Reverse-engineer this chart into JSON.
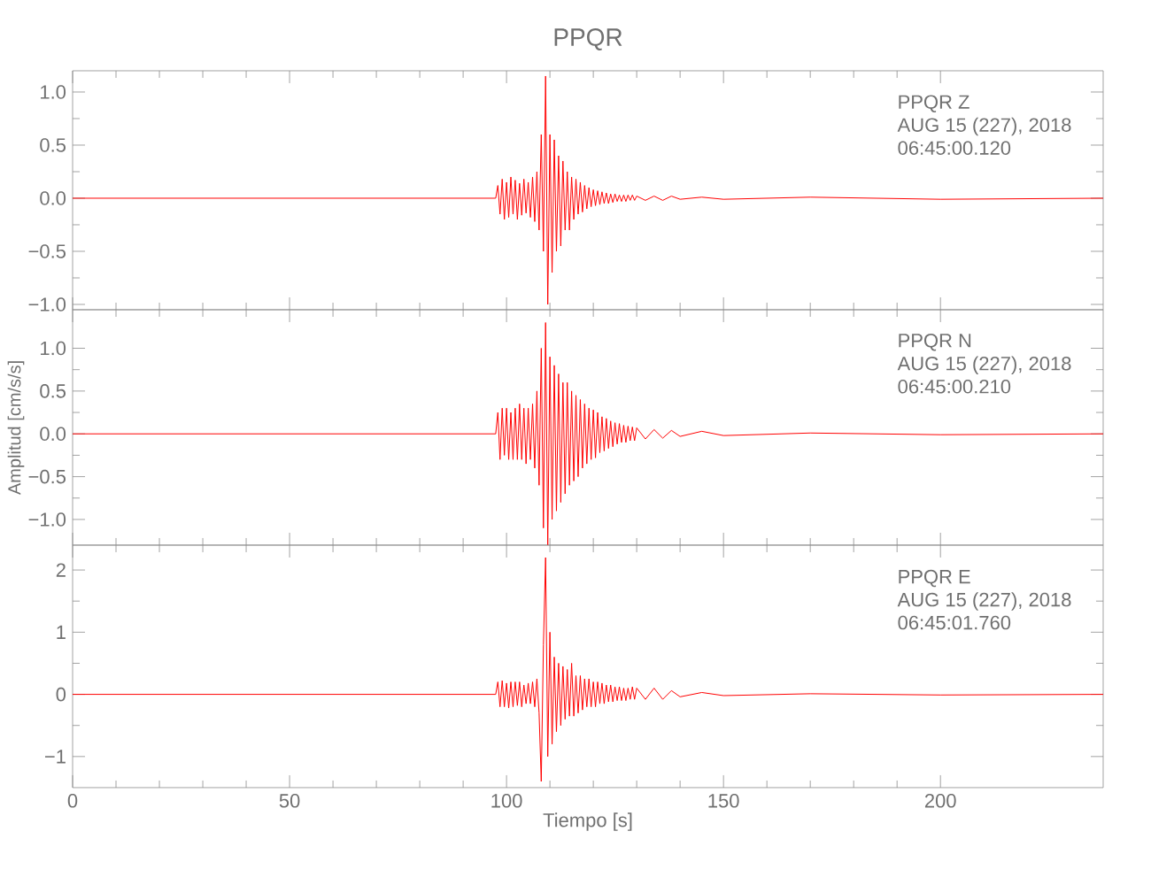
{
  "chart_data": [
    {
      "type": "line",
      "title": "PPQR",
      "color": "#ff0000",
      "marker": "none",
      "tick_labels": "y",
      "xlim": [
        0,
        237.5
      ],
      "ylim": [
        -1.05,
        1.2
      ],
      "xticks": [
        0,
        50,
        100,
        150,
        200
      ],
      "yticks": [
        {
          "value": -1,
          "label": "−1.0"
        },
        {
          "value": -0.5,
          "label": "−0.5"
        },
        {
          "value": 0,
          "label": "0.0"
        },
        {
          "value": 0.5,
          "label": "0.5"
        },
        {
          "value": 1,
          "label": "1.0"
        }
      ],
      "annotations": [
        "PPQR   Z",
        "AUG 15 (227), 2018",
        "06:45:00.120"
      ],
      "x": [
        0,
        25,
        50,
        75,
        97.5,
        98,
        98.5,
        99,
        99.5,
        100,
        100.5,
        101,
        101.5,
        102,
        102.5,
        103,
        103.5,
        104,
        104.5,
        105,
        105.5,
        106,
        106.5,
        107,
        107.5,
        108,
        108.5,
        109,
        109.5,
        110,
        110.5,
        111,
        111.5,
        112,
        112.5,
        113,
        113.5,
        114,
        114.5,
        115,
        115.5,
        116,
        116.5,
        117,
        117.5,
        118,
        118.5,
        119,
        119.5,
        120,
        120.5,
        121,
        121.5,
        122,
        122.5,
        123,
        123.5,
        124,
        124.5,
        125,
        125.5,
        126,
        126.5,
        127,
        127.5,
        128,
        128.5,
        129,
        129.5,
        130,
        132,
        134,
        136,
        138,
        140,
        145,
        150,
        170,
        200,
        237.5
      ],
      "values": [
        0,
        0,
        0,
        0,
        0,
        0.12,
        -0.15,
        0.18,
        -0.2,
        0.15,
        -0.18,
        0.2,
        -0.15,
        0.17,
        -0.2,
        0.14,
        -0.16,
        0.18,
        -0.14,
        0.15,
        -0.18,
        0.2,
        -0.22,
        0.25,
        -0.3,
        0.6,
        -0.5,
        1.15,
        -1.0,
        0.6,
        -0.7,
        0.55,
        -0.5,
        0.4,
        -0.45,
        0.35,
        -0.3,
        0.25,
        -0.3,
        0.2,
        -0.2,
        0.18,
        -0.15,
        0.15,
        -0.13,
        0.12,
        -0.1,
        0.1,
        -0.08,
        0.08,
        -0.07,
        0.07,
        -0.06,
        0.06,
        -0.05,
        0.05,
        -0.05,
        0.04,
        -0.04,
        0.04,
        -0.03,
        0.03,
        -0.03,
        0.03,
        -0.03,
        0.03,
        -0.02,
        0.03,
        -0.02,
        0.02,
        -0.02,
        0.02,
        -0.02,
        0.02,
        -0.01,
        0.01,
        -0.01,
        0.01,
        -0.01,
        0
      ]
    },
    {
      "type": "line",
      "ylabel": "Amplitud [cm/s/s]",
      "color": "#ff0000",
      "marker": "none",
      "tick_labels": "y",
      "xlim": [
        0,
        237.5
      ],
      "ylim": [
        -1.3,
        1.45
      ],
      "xticks": [
        0,
        50,
        100,
        150,
        200
      ],
      "yticks": [
        {
          "value": -1,
          "label": "−1.0"
        },
        {
          "value": -0.5,
          "label": "−0.5"
        },
        {
          "value": 0,
          "label": "0.0"
        },
        {
          "value": 0.5,
          "label": "0.5"
        },
        {
          "value": 1,
          "label": "1.0"
        }
      ],
      "annotations": [
        "PPQR   N",
        "AUG 15 (227), 2018",
        "06:45:00.210"
      ],
      "x": [
        0,
        25,
        50,
        75,
        97.5,
        98,
        98.5,
        99,
        99.5,
        100,
        100.5,
        101,
        101.5,
        102,
        102.5,
        103,
        103.5,
        104,
        104.5,
        105,
        105.5,
        106,
        106.5,
        107,
        107.5,
        108,
        108.5,
        109,
        109.5,
        110,
        110.5,
        111,
        111.5,
        112,
        112.5,
        113,
        113.5,
        114,
        114.5,
        115,
        115.5,
        116,
        116.5,
        117,
        117.5,
        118,
        118.5,
        119,
        119.5,
        120,
        120.5,
        121,
        121.5,
        122,
        122.5,
        123,
        123.5,
        124,
        124.5,
        125,
        125.5,
        126,
        126.5,
        127,
        127.5,
        128,
        128.5,
        129,
        129.5,
        130,
        132,
        134,
        136,
        138,
        140,
        145,
        150,
        170,
        200,
        237.5
      ],
      "values": [
        0,
        0,
        0,
        0,
        0,
        0.25,
        -0.3,
        0.3,
        -0.25,
        0.3,
        -0.3,
        0.25,
        -0.3,
        0.3,
        -0.3,
        0.35,
        -0.3,
        0.3,
        -0.35,
        0.3,
        -0.3,
        0.35,
        -0.4,
        0.5,
        -0.6,
        1.0,
        -1.1,
        1.3,
        -1.3,
        0.9,
        -1.0,
        0.8,
        -0.9,
        0.7,
        -0.8,
        0.6,
        -0.7,
        0.6,
        -0.6,
        0.5,
        -0.55,
        0.45,
        -0.5,
        0.4,
        -0.4,
        0.35,
        -0.35,
        0.3,
        -0.3,
        0.28,
        -0.28,
        0.25,
        -0.22,
        0.2,
        -0.2,
        0.18,
        -0.17,
        0.15,
        -0.15,
        0.13,
        -0.12,
        0.12,
        -0.1,
        0.1,
        -0.1,
        0.09,
        -0.08,
        0.08,
        -0.08,
        0.07,
        -0.06,
        0.05,
        -0.05,
        0.04,
        -0.03,
        0.03,
        -0.02,
        0.01,
        -0.01,
        0
      ]
    },
    {
      "type": "line",
      "xlabel": "Tiempo [s]",
      "color": "#ff0000",
      "marker": "none",
      "xlim": [
        0,
        237.5
      ],
      "ylim": [
        -1.5,
        2.4
      ],
      "xticks": [
        0,
        50,
        100,
        150,
        200
      ],
      "yticks": [
        {
          "value": -1,
          "label": "−1"
        },
        0,
        1,
        2
      ],
      "annotations": [
        "PPQR   E",
        "AUG 15 (227), 2018",
        "06:45:01.760"
      ],
      "x": [
        0,
        25,
        50,
        75,
        97.5,
        98,
        98.5,
        99,
        99.5,
        100,
        100.5,
        101,
        101.5,
        102,
        102.5,
        103,
        103.5,
        104,
        104.5,
        105,
        105.5,
        106,
        106.5,
        107,
        107.5,
        108,
        108.5,
        109,
        109.5,
        110,
        110.5,
        111,
        111.5,
        112,
        112.5,
        113,
        113.5,
        114,
        114.5,
        115,
        115.5,
        116,
        116.5,
        117,
        117.5,
        118,
        118.5,
        119,
        119.5,
        120,
        120.5,
        121,
        121.5,
        122,
        122.5,
        123,
        123.5,
        124,
        124.5,
        125,
        125.5,
        126,
        126.5,
        127,
        127.5,
        128,
        128.5,
        129,
        129.5,
        130,
        132,
        134,
        136,
        138,
        140,
        145,
        150,
        170,
        200,
        237.5
      ],
      "values": [
        0,
        0,
        0,
        0,
        0,
        0.2,
        -0.2,
        0.22,
        -0.2,
        0.18,
        -0.22,
        0.2,
        -0.2,
        0.2,
        -0.18,
        0.2,
        -0.2,
        0.15,
        -0.15,
        0.18,
        -0.15,
        0.2,
        -0.2,
        0.25,
        -0.3,
        -1.4,
        0.8,
        2.2,
        -1.0,
        1.0,
        -0.8,
        0.6,
        -0.6,
        0.5,
        -0.5,
        0.45,
        -0.4,
        0.4,
        -0.35,
        0.5,
        -0.35,
        0.3,
        -0.3,
        0.3,
        -0.25,
        0.25,
        -0.2,
        0.25,
        -0.2,
        0.2,
        -0.2,
        0.2,
        -0.15,
        0.18,
        -0.15,
        0.15,
        -0.12,
        0.15,
        -0.12,
        0.12,
        -0.1,
        0.12,
        -0.1,
        0.1,
        -0.1,
        0.1,
        -0.08,
        0.12,
        -0.08,
        0.1,
        -0.08,
        0.1,
        -0.08,
        0.06,
        -0.04,
        0.03,
        -0.02,
        0.01,
        -0.01,
        0
      ]
    }
  ]
}
